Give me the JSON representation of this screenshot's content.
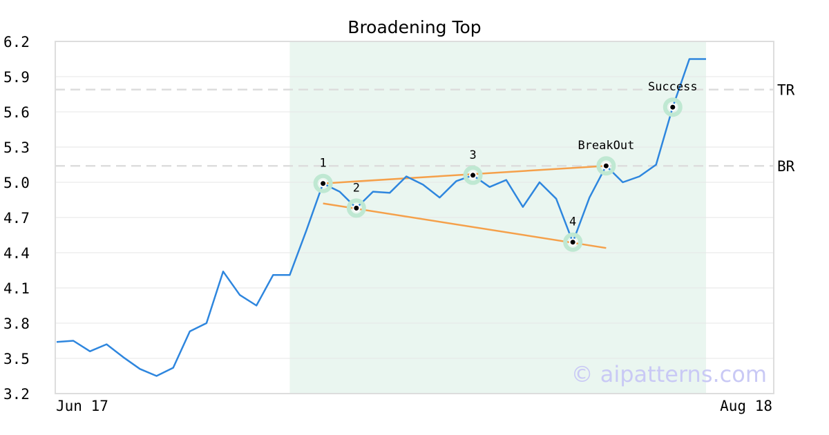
{
  "chart_data": {
    "type": "line",
    "title": "Broadening Top",
    "xlabel": "",
    "ylabel": "",
    "x_tick_labels": [
      "Jun 17",
      "Aug 18"
    ],
    "yticks": [
      3.2,
      3.5,
      3.8,
      4.1,
      4.4,
      4.7,
      5.0,
      5.3,
      5.6,
      5.9,
      6.2
    ],
    "ylim": [
      3.2,
      6.2
    ],
    "grid": true,
    "series": [
      {
        "color": "#2e86de",
        "values": [
          3.64,
          3.65,
          3.56,
          3.62,
          3.51,
          3.41,
          3.35,
          3.42,
          3.73,
          3.8,
          4.24,
          4.04,
          3.95,
          4.21,
          4.21,
          4.59,
          4.99,
          4.92,
          4.78,
          4.92,
          4.91,
          5.05,
          4.98,
          4.87,
          5.01,
          5.06,
          4.96,
          5.02,
          4.79,
          5.0,
          4.86,
          4.49,
          4.87,
          5.14,
          5.0,
          5.05,
          5.15,
          5.64,
          6.05,
          6.05
        ]
      }
    ],
    "highlight_range": {
      "start_index": 14,
      "end_index": 39,
      "color": "#eaf6f0"
    },
    "reference_lines": [
      {
        "label": "TR",
        "value": 5.79,
        "color": "#dddddd"
      },
      {
        "label": "BR",
        "value": 5.14,
        "color": "#dddddd"
      }
    ],
    "trendlines": [
      {
        "color": "#f5a04a",
        "from": {
          "index": 16,
          "value": 4.99
        },
        "to": {
          "index": 33,
          "value": 5.14
        }
      },
      {
        "color": "#f5a04a",
        "from": {
          "index": 16,
          "value": 4.82
        },
        "to": {
          "index": 33,
          "value": 4.44
        }
      }
    ],
    "points": [
      {
        "label": "1",
        "index": 16,
        "value": 4.99,
        "label_pos": "above"
      },
      {
        "label": "2",
        "index": 18,
        "value": 4.78,
        "label_pos": "above"
      },
      {
        "label": "3",
        "index": 25,
        "value": 5.06,
        "label_pos": "above"
      },
      {
        "label": "4",
        "index": 31,
        "value": 4.49,
        "label_pos": "above"
      },
      {
        "label": "BreakOut",
        "index": 33,
        "value": 5.14,
        "label_pos": "above"
      },
      {
        "label": "Success",
        "index": 37,
        "value": 5.64,
        "label_pos": "above"
      }
    ],
    "watermark": "© aipatterns.com"
  }
}
